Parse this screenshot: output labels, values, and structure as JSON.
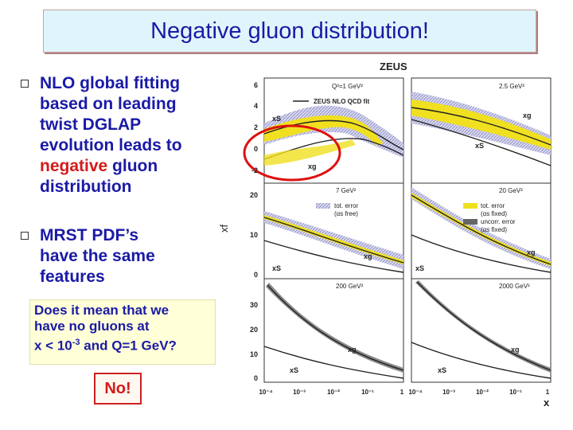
{
  "slide": {
    "title": "Negative gluon distribution!",
    "bullets": [
      {
        "lines": [
          "NLO global fitting",
          "based on leading",
          "twist DGLAP",
          "evolution leads to"
        ],
        "neg_word": "negative",
        "neg_rest": " gluon",
        "last": "distribution"
      },
      {
        "lines": [
          "MRST PDF’s",
          "have the same",
          "features"
        ]
      }
    ],
    "question": {
      "l1": "Does it mean that we",
      "l2": "have no gluons at",
      "l3a": "x < 10",
      "l3sup": "-3",
      "l3b": " and Q=1 GeV?"
    },
    "answer": "No!"
  },
  "figure": {
    "experiment": "ZEUS",
    "y_label": "xf",
    "x_label": "x",
    "fit_label": "ZEUS NLO QCD fit",
    "panels": [
      {
        "q2": "Q²=1 GeV²"
      },
      {
        "q2": "2.5 GeV²"
      },
      {
        "q2": "7 GeV²"
      },
      {
        "q2": "20 GeV²"
      },
      {
        "q2": "200 GeV²"
      },
      {
        "q2": "2000 GeV²"
      }
    ],
    "curve_labels": {
      "xS": "xS",
      "xg": "xg"
    },
    "legend": {
      "tot_error": "tot. error",
      "as_free": "(αs free)",
      "as_fixed": "(αs fixed)",
      "uncorr_error": "uncorr. error"
    },
    "y_ticks_row1": [
      "6",
      "4",
      "2",
      "0",
      "-2"
    ],
    "y_ticks_row2": [
      "20",
      "10",
      "0"
    ],
    "y_ticks_row3": [
      "30",
      "20",
      "10",
      "0"
    ],
    "x_ticks": [
      "10⁻⁴",
      "10⁻³",
      "10⁻²",
      "10⁻¹",
      "1"
    ],
    "x_ticks_right": [
      "10⁻⁴",
      "10⁻³",
      "10⁻²",
      "10⁻¹",
      "1"
    ]
  }
}
